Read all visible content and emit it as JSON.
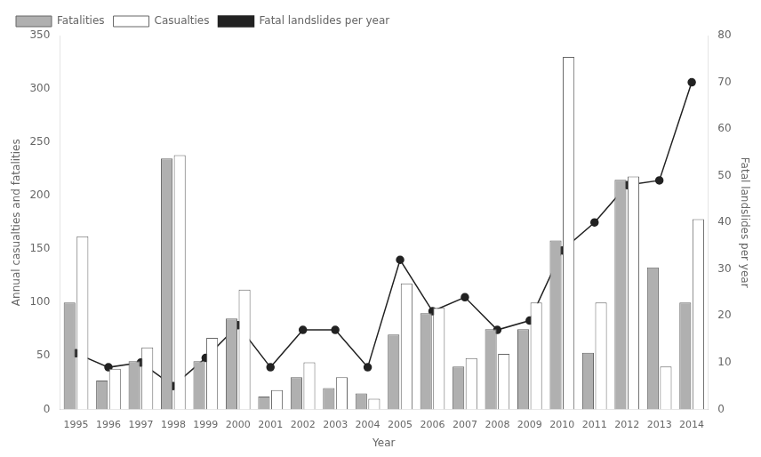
{
  "chart_data": {
    "type": "bar",
    "xlabel": "Year",
    "ylabel": "Annual casualties and fatalities",
    "y2label": "Fatal landslides per year",
    "categories": [
      "1995",
      "1996",
      "1997",
      "1998",
      "1999",
      "2000",
      "2001",
      "2002",
      "2003",
      "2004",
      "2005",
      "2006",
      "2007",
      "2008",
      "2009",
      "2010",
      "2011",
      "2012",
      "2013",
      "2014"
    ],
    "series": [
      {
        "name": "Fatalities",
        "color": "#b0b0b0",
        "values": [
          100,
          27,
          45,
          235,
          45,
          85,
          12,
          30,
          20,
          15,
          70,
          90,
          40,
          75,
          75,
          158,
          53,
          215,
          133,
          100
        ]
      },
      {
        "name": "Casualties",
        "color": "#ffffff",
        "values": [
          162,
          38,
          58,
          238,
          67,
          112,
          18,
          44,
          30,
          10,
          118,
          95,
          48,
          52,
          100,
          330,
          100,
          218,
          40,
          178
        ]
      },
      {
        "name": "Fatal landslides per year",
        "type": "line",
        "axis": "y2",
        "color": "#222222",
        "marker": "circle",
        "line_style": "solid",
        "values": [
          12,
          9,
          10,
          5,
          11,
          18,
          9,
          17,
          17,
          9,
          32,
          21,
          24,
          17,
          19,
          34,
          40,
          48,
          49,
          70
        ]
      }
    ],
    "ylim": [
      0,
      350
    ],
    "yticks": [
      0,
      50,
      100,
      150,
      200,
      250,
      300,
      350
    ],
    "y2lim": [
      0,
      80
    ],
    "y2ticks": [
      0,
      10,
      20,
      30,
      40,
      50,
      60,
      70,
      80
    ],
    "grid": false,
    "legend": "upper left"
  }
}
